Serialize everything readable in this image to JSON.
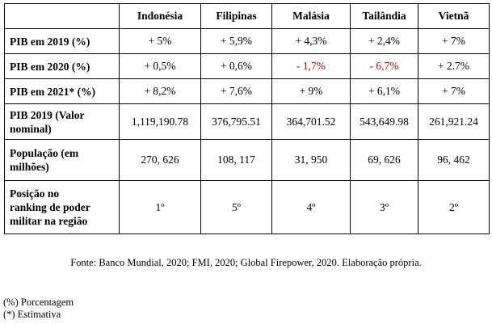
{
  "table": {
    "headers": [
      "",
      "Indonésia",
      "Filipinas",
      "Malásia",
      "Tailândia",
      "Vietnã"
    ],
    "rows": [
      {
        "label": "PIB em 2019 (%)",
        "values": [
          "+ 5%",
          "+ 5,9%",
          "+ 4,3%",
          "+ 2,4%",
          "+ 7%"
        ]
      },
      {
        "label": "PIB em 2020 (%)",
        "values": [
          "+ 0,5%",
          "+ 0,6%",
          "- 1,7%",
          "- 6,7%",
          "+ 2.7%"
        ]
      },
      {
        "label": "PIB em 2021* (%)",
        "values": [
          "+ 8,2%",
          "+ 7,6%",
          "+ 9%",
          "+ 6,1%",
          "+ 7%"
        ]
      },
      {
        "label_line1": "PIB 2019 (Valor",
        "label_line2": "nominal)",
        "values": [
          "1,119,190.78",
          "376,795.51",
          "364,701.52",
          "543,649.98",
          "261,921.24"
        ]
      },
      {
        "label_line1": "População (em",
        "label_line2": "milhões)",
        "values": [
          "270, 626",
          "108, 117",
          "31, 950",
          "69, 626",
          "96, 462"
        ]
      },
      {
        "label_line1": "Posição no",
        "label_line2": "ranking de poder",
        "label_line3": "militar na região",
        "values": [
          "1º",
          "5º",
          "4º",
          "3º",
          "2º"
        ]
      }
    ]
  },
  "source": "Fonte: Banco Mundial, 2020; FMI, 2020; Global Firepower, 2020. Elaboração própria.",
  "notes": [
    "(%) Porcentagem",
    "(*) Estimativa"
  ],
  "colors": {
    "negative": "#c00000",
    "text": "#000000"
  }
}
